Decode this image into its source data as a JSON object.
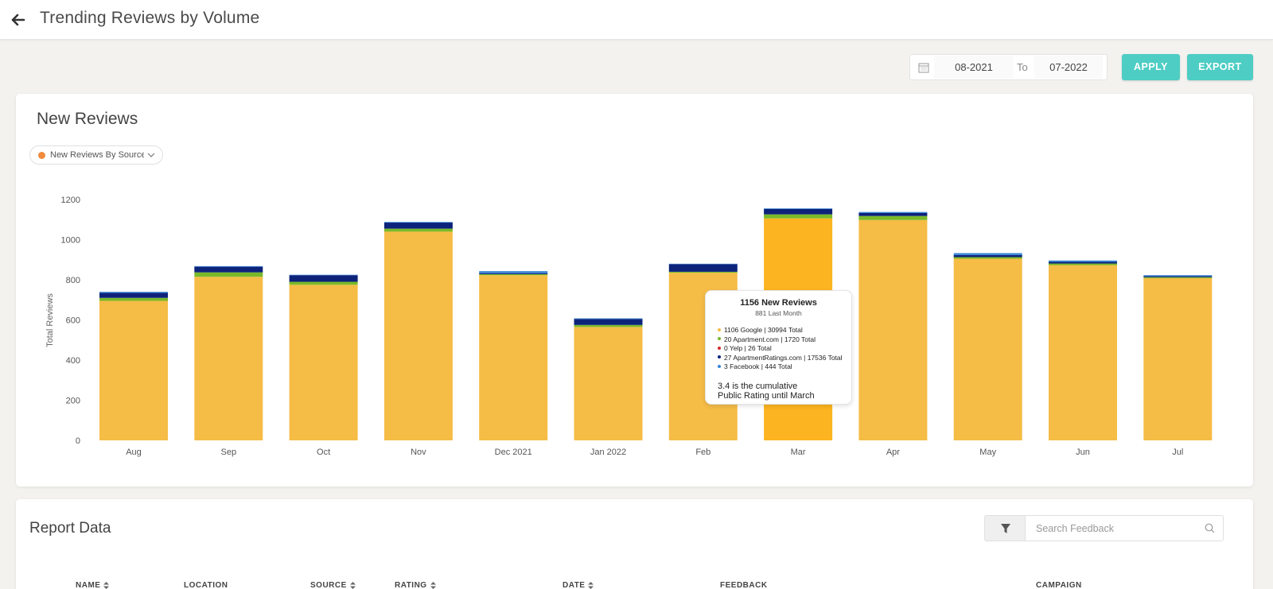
{
  "header": {
    "title": "Trending Reviews by Volume"
  },
  "date_range": {
    "from": "08-2021",
    "to_label": "To",
    "to": "07-2022"
  },
  "actions": {
    "apply": "APPLY",
    "export": "EXPORT"
  },
  "chart_card": {
    "title": "New Reviews",
    "source_select": "New Reviews By Source"
  },
  "colors": {
    "google": "#f5bc46",
    "google_highlight": "#fdb421",
    "apartment": "#79b929",
    "yelp": "#d22b2b",
    "apartmentratings": "#0d237a",
    "facebook": "#3a86d9",
    "accent": "#4ecdc4"
  },
  "chart_data": {
    "type": "bar",
    "stacked": true,
    "categories": [
      "Aug",
      "Sep",
      "Oct",
      "Nov",
      "Dec 2021",
      "Jan 2022",
      "Feb",
      "Mar",
      "Apr",
      "May",
      "Jun",
      "Jul"
    ],
    "series": [
      {
        "name": "Google",
        "values": [
          695,
          815,
          775,
          1040,
          823,
          565,
          835,
          1106,
          1098,
          905,
          873,
          808
        ]
      },
      {
        "name": "Apartment.com",
        "values": [
          15,
          22,
          15,
          15,
          5,
          10,
          5,
          20,
          20,
          8,
          8,
          5
        ]
      },
      {
        "name": "Yelp",
        "values": [
          0,
          0,
          0,
          0,
          0,
          0,
          0,
          0,
          0,
          0,
          0,
          0
        ]
      },
      {
        "name": "ApartmentRatings.com",
        "values": [
          25,
          28,
          33,
          30,
          5,
          30,
          38,
          27,
          15,
          10,
          8,
          5
        ]
      },
      {
        "name": "Facebook",
        "values": [
          5,
          3,
          2,
          3,
          10,
          3,
          2,
          3,
          5,
          10,
          7,
          5
        ]
      }
    ],
    "ylabel": "Total Reviews",
    "ylim": [
      0,
      1200
    ],
    "yticks": [
      0,
      200,
      400,
      600,
      800,
      1000,
      1200
    ],
    "highlight_index": 7,
    "grid": false,
    "legend": "none"
  },
  "tooltip": {
    "title": "1156 New Reviews",
    "subtitle": "881 Last Month",
    "items": [
      {
        "text": "1106 Google | 30994 Total",
        "color": "#f5bc46"
      },
      {
        "text": "20 Apartment.com | 1720 Total",
        "color": "#79b929"
      },
      {
        "text": "0 Yelp | 26 Total",
        "color": "#d22b2b"
      },
      {
        "text": "27 ApartmentRatings.com | 17536 Total",
        "color": "#0d237a"
      },
      {
        "text": "3 Facebook | 444 Total",
        "color": "#3a86d9"
      }
    ],
    "footer_line1": "3.4 is the cumulative",
    "footer_line2": "Public Rating until March"
  },
  "report": {
    "title": "Report Data",
    "search_placeholder": "Search Feedback",
    "columns": [
      "NAME",
      "LOCATION",
      "SOURCE",
      "RATING",
      "DATE",
      "FEEDBACK",
      "CAMPAIGN"
    ]
  }
}
